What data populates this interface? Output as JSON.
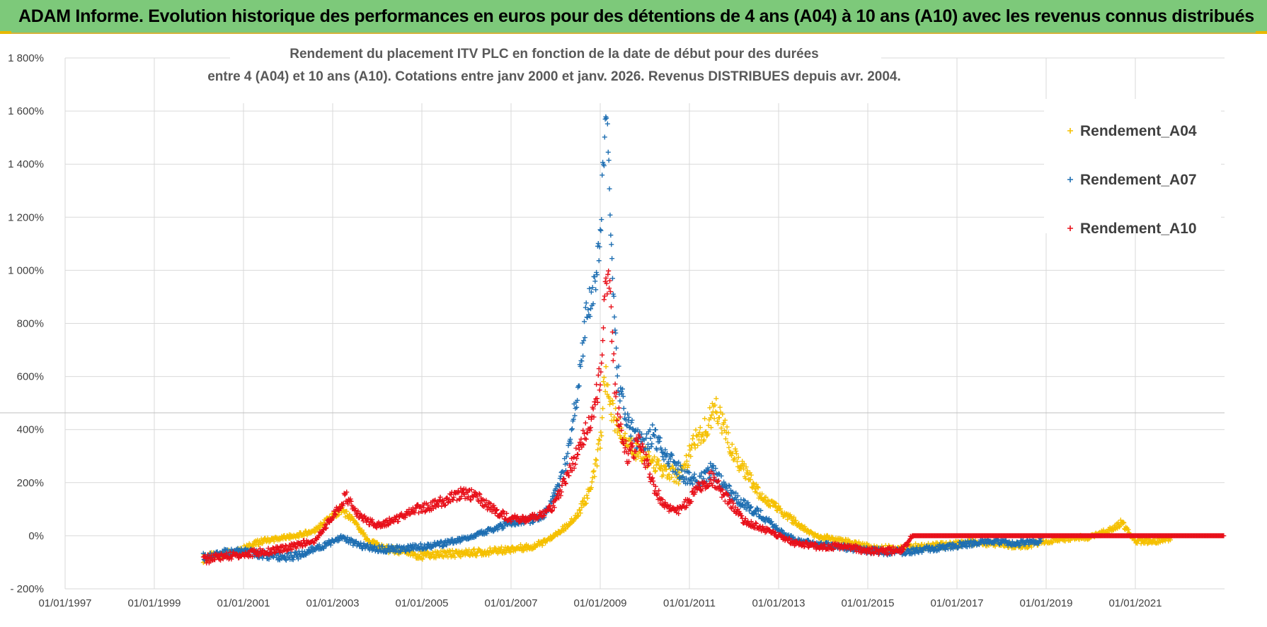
{
  "header": {
    "banner": "ADAM Informe. Evolution historique des performances en euros pour des détentions de 4 ans (A04) à 10 ans (A10) avec les revenus connus distribués"
  },
  "colors": {
    "banner_bg": "#7dc97a",
    "a04": "#f5c000",
    "a07": "#1f6fb2",
    "a10": "#e8101a",
    "grid": "#d9d9d9"
  },
  "chart_data": {
    "type": "scatter",
    "title_line1": "Rendement du placement ITV PLC en fonction de la date de début pour des durées",
    "title_line2": "entre 4 (A04) et 10 ans (A10). Cotations entre janv 2000 et janv. 2026. Revenus DISTRIBUES depuis avr. 2004.",
    "y_unit": "%",
    "ylim": [
      -200,
      1800
    ],
    "y_ticks": [
      "- 200%",
      "0%",
      "200%",
      "400%",
      "600%",
      "800%",
      "1 000%",
      "1 200%",
      "1 400%",
      "1 600%",
      "1 800%"
    ],
    "xlim": [
      1997.0,
      2023.0
    ],
    "x_ticks": [
      "01/01/1997",
      "01/01/1999",
      "01/01/2001",
      "01/01/2003",
      "01/01/2005",
      "01/01/2007",
      "01/01/2009",
      "01/01/2011",
      "01/01/2013",
      "01/01/2015",
      "01/01/2017",
      "01/01/2019",
      "01/01/2021"
    ],
    "legend_position": "top-right",
    "series": [
      {
        "name": "Rendement_A04",
        "color_key": "a04",
        "points": [
          [
            2000.1,
            -85
          ],
          [
            2000.5,
            -70
          ],
          [
            2001.0,
            -50
          ],
          [
            2001.4,
            -20
          ],
          [
            2001.8,
            -10
          ],
          [
            2002.2,
            0
          ],
          [
            2002.6,
            20
          ],
          [
            2002.9,
            60
          ],
          [
            2003.2,
            100
          ],
          [
            2003.5,
            50
          ],
          [
            2003.8,
            -20
          ],
          [
            2004.2,
            -50
          ],
          [
            2004.6,
            -60
          ],
          [
            2005.0,
            -75
          ],
          [
            2005.5,
            -70
          ],
          [
            2006.0,
            -65
          ],
          [
            2006.5,
            -60
          ],
          [
            2007.0,
            -50
          ],
          [
            2007.5,
            -40
          ],
          [
            2007.8,
            -20
          ],
          [
            2008.2,
            30
          ],
          [
            2008.5,
            80
          ],
          [
            2008.8,
            180
          ],
          [
            2009.0,
            350
          ],
          [
            2009.1,
            600
          ],
          [
            2009.3,
            450
          ],
          [
            2009.6,
            350
          ],
          [
            2010.0,
            300
          ],
          [
            2010.4,
            250
          ],
          [
            2010.8,
            220
          ],
          [
            2011.1,
            350
          ],
          [
            2011.4,
            420
          ],
          [
            2011.6,
            480
          ],
          [
            2011.9,
            350
          ],
          [
            2012.2,
            250
          ],
          [
            2012.6,
            150
          ],
          [
            2013.0,
            100
          ],
          [
            2013.4,
            50
          ],
          [
            2013.8,
            0
          ],
          [
            2014.2,
            -10
          ],
          [
            2014.7,
            -30
          ],
          [
            2015.2,
            -50
          ],
          [
            2015.7,
            -45
          ],
          [
            2016.3,
            -40
          ],
          [
            2016.8,
            -35
          ],
          [
            2017.3,
            -25
          ],
          [
            2017.9,
            -30
          ],
          [
            2018.5,
            -40
          ],
          [
            2019.0,
            -20
          ],
          [
            2019.5,
            -10
          ],
          [
            2020.0,
            -5
          ],
          [
            2020.4,
            20
          ],
          [
            2020.7,
            50
          ],
          [
            2021.0,
            -20
          ],
          [
            2021.5,
            -20
          ],
          [
            2021.8,
            -10
          ]
        ]
      },
      {
        "name": "Rendement_A07",
        "color_key": "a07",
        "points": [
          [
            2000.1,
            -80
          ],
          [
            2000.5,
            -65
          ],
          [
            2001.0,
            -60
          ],
          [
            2001.4,
            -70
          ],
          [
            2001.8,
            -80
          ],
          [
            2002.2,
            -75
          ],
          [
            2002.6,
            -50
          ],
          [
            2002.9,
            -30
          ],
          [
            2003.2,
            -5
          ],
          [
            2003.5,
            -30
          ],
          [
            2003.8,
            -45
          ],
          [
            2004.2,
            -50
          ],
          [
            2004.6,
            -50
          ],
          [
            2005.0,
            -40
          ],
          [
            2005.5,
            -30
          ],
          [
            2006.0,
            -10
          ],
          [
            2006.5,
            20
          ],
          [
            2007.0,
            50
          ],
          [
            2007.5,
            60
          ],
          [
            2007.8,
            90
          ],
          [
            2008.1,
            200
          ],
          [
            2008.3,
            320
          ],
          [
            2008.5,
            560
          ],
          [
            2008.7,
            850
          ],
          [
            2008.9,
            950
          ],
          [
            2009.0,
            1150
          ],
          [
            2009.1,
            1500
          ],
          [
            2009.15,
            1630
          ],
          [
            2009.25,
            1100
          ],
          [
            2009.4,
            600
          ],
          [
            2009.6,
            420
          ],
          [
            2009.9,
            350
          ],
          [
            2010.2,
            380
          ],
          [
            2010.5,
            300
          ],
          [
            2010.9,
            220
          ],
          [
            2011.2,
            200
          ],
          [
            2011.5,
            250
          ],
          [
            2011.8,
            180
          ],
          [
            2012.2,
            120
          ],
          [
            2012.6,
            80
          ],
          [
            2013.0,
            20
          ],
          [
            2013.4,
            -20
          ],
          [
            2013.8,
            -30
          ],
          [
            2014.3,
            -40
          ],
          [
            2014.8,
            -50
          ],
          [
            2015.3,
            -60
          ],
          [
            2015.8,
            -60
          ],
          [
            2016.3,
            -50
          ],
          [
            2016.8,
            -40
          ],
          [
            2017.3,
            -30
          ],
          [
            2017.8,
            -20
          ],
          [
            2018.3,
            -30
          ],
          [
            2018.9,
            -20
          ]
        ]
      },
      {
        "name": "Rendement_A10",
        "color_key": "a10",
        "points": [
          [
            2000.1,
            -90
          ],
          [
            2000.5,
            -80
          ],
          [
            2001.0,
            -70
          ],
          [
            2001.5,
            -60
          ],
          [
            2001.9,
            -50
          ],
          [
            2002.3,
            -30
          ],
          [
            2002.6,
            -20
          ],
          [
            2002.9,
            50
          ],
          [
            2003.1,
            100
          ],
          [
            2003.3,
            150
          ],
          [
            2003.6,
            70
          ],
          [
            2004.0,
            40
          ],
          [
            2004.4,
            60
          ],
          [
            2004.8,
            100
          ],
          [
            2005.2,
            110
          ],
          [
            2005.6,
            140
          ],
          [
            2005.9,
            160
          ],
          [
            2006.2,
            150
          ],
          [
            2006.5,
            110
          ],
          [
            2006.9,
            70
          ],
          [
            2007.2,
            60
          ],
          [
            2007.6,
            70
          ],
          [
            2007.9,
            100
          ],
          [
            2008.2,
            200
          ],
          [
            2008.5,
            320
          ],
          [
            2008.8,
            450
          ],
          [
            2009.0,
            600
          ],
          [
            2009.1,
            900
          ],
          [
            2009.2,
            980
          ],
          [
            2009.35,
            500
          ],
          [
            2009.6,
            300
          ],
          [
            2009.9,
            350
          ],
          [
            2010.2,
            180
          ],
          [
            2010.5,
            100
          ],
          [
            2010.8,
            100
          ],
          [
            2011.2,
            180
          ],
          [
            2011.5,
            220
          ],
          [
            2011.8,
            150
          ],
          [
            2012.2,
            60
          ],
          [
            2012.6,
            30
          ],
          [
            2013.0,
            0
          ],
          [
            2013.4,
            -30
          ],
          [
            2013.8,
            -40
          ],
          [
            2014.3,
            -40
          ],
          [
            2014.8,
            -50
          ],
          [
            2015.3,
            -60
          ],
          [
            2015.8,
            -50
          ],
          [
            2016.0,
            0
          ],
          [
            2018.0,
            0
          ],
          [
            2020.0,
            0
          ],
          [
            2022.0,
            0
          ],
          [
            2023.0,
            0
          ]
        ]
      }
    ]
  }
}
